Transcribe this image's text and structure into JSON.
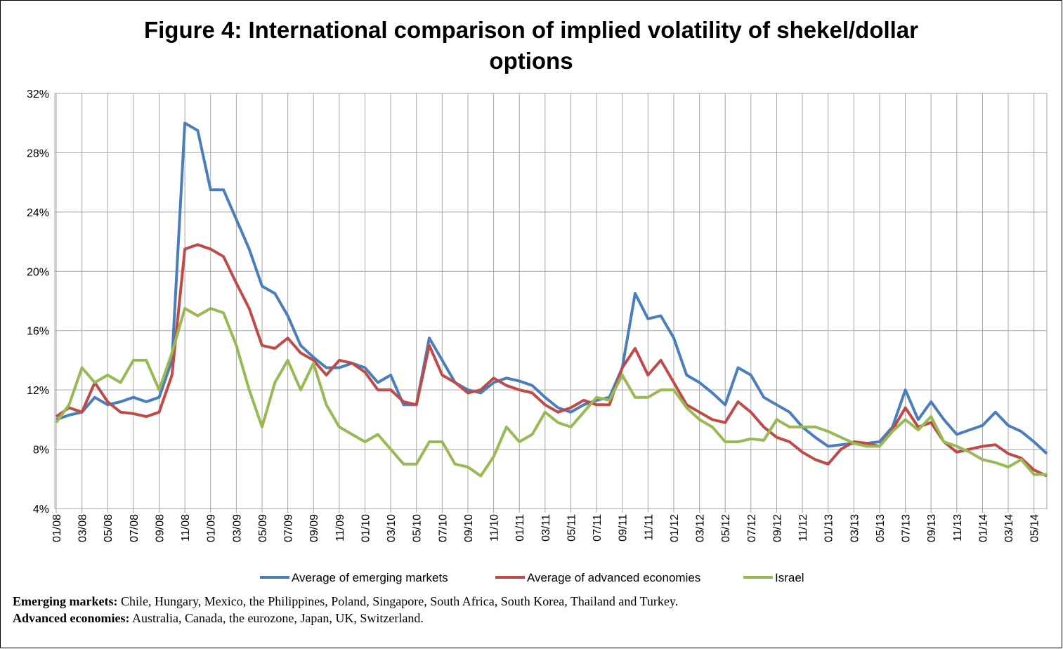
{
  "chart_data": {
    "type": "line",
    "title": "Figure 4: International comparison of implied volatility of shekel/dollar options",
    "categories": [
      "01/08",
      null,
      "03/08",
      null,
      "05/08",
      null,
      "07/08",
      null,
      "09/08",
      null,
      "11/08",
      null,
      "01/09",
      null,
      "03/09",
      null,
      "05/09",
      null,
      "07/09",
      null,
      "09/09",
      null,
      "11/09",
      null,
      "01/10",
      null,
      "03/10",
      null,
      "05/10",
      null,
      "07/10",
      null,
      "09/10",
      null,
      "11/10",
      null,
      "01/11",
      null,
      "03/11",
      null,
      "05/11",
      null,
      "07/11",
      null,
      "09/11",
      null,
      "11/11",
      null,
      "01/12",
      null,
      "03/12",
      null,
      "05/12",
      null,
      "07/12",
      null,
      "09/12",
      null,
      "11/12",
      null,
      "01/13",
      null,
      "03/13",
      null,
      "05/13",
      null,
      "07/13",
      null,
      "09/13",
      null,
      "11/13",
      null,
      "01/14",
      null,
      "03/14",
      null,
      "05/14",
      null
    ],
    "series": [
      {
        "name": "Average of emerging markets",
        "color": "#4a7ebb",
        "values": [
          10,
          10.3,
          10.5,
          11.5,
          11,
          11.2,
          11.5,
          11.2,
          11.5,
          14,
          30,
          29.5,
          25.5,
          25.5,
          23.5,
          21.5,
          19,
          18.5,
          17,
          15,
          14.2,
          13.5,
          13.5,
          13.8,
          13.5,
          12.5,
          13,
          11,
          11,
          15.5,
          14,
          12.5,
          12,
          11.8,
          12.5,
          12.8,
          12.6,
          12.3,
          11.5,
          10.8,
          10.5,
          11,
          11.3,
          11.5,
          13.5,
          18.5,
          16.8,
          17,
          15.5,
          13,
          12.5,
          11.8,
          11,
          13.5,
          13,
          11.5,
          11,
          10.5,
          9.5,
          8.8,
          8.2,
          8.3,
          8.4,
          8.4,
          8.5,
          9.5,
          12,
          10,
          11.2,
          10,
          9,
          9.3,
          9.6,
          10.5,
          9.6,
          9.2,
          8.5,
          7.7
        ]
      },
      {
        "name": "Average of advanced economies",
        "color": "#be4b48",
        "values": [
          10.2,
          10.8,
          10.5,
          12.5,
          11.2,
          10.5,
          10.4,
          10.2,
          10.5,
          13,
          21.5,
          21.8,
          21.5,
          21,
          19.2,
          17.5,
          15,
          14.8,
          15.5,
          14.5,
          14,
          13,
          14,
          13.8,
          13.2,
          12,
          12,
          11.2,
          11,
          15,
          13,
          12.5,
          11.8,
          12,
          12.8,
          12.3,
          12,
          11.8,
          11,
          10.5,
          10.8,
          11.3,
          11,
          11,
          13.5,
          14.8,
          13,
          14,
          12.5,
          11,
          10.5,
          10,
          9.8,
          11.2,
          10.5,
          9.5,
          8.8,
          8.5,
          7.8,
          7.3,
          7,
          8,
          8.5,
          8.4,
          8.2,
          9.3,
          10.8,
          9.5,
          9.8,
          8.5,
          7.8,
          8,
          8.2,
          8.3,
          7.7,
          7.4,
          6.6,
          6.2
        ]
      },
      {
        "name": "Israel",
        "color": "#98b954",
        "values": [
          9.8,
          11,
          13.5,
          12.5,
          13,
          12.5,
          14,
          14,
          12,
          14.5,
          17.5,
          17,
          17.5,
          17.2,
          15,
          12,
          9.5,
          12.5,
          14,
          12,
          13.8,
          11,
          9.5,
          9,
          8.5,
          9,
          8,
          7,
          7,
          8.5,
          8.5,
          7,
          6.8,
          6.2,
          7.5,
          9.5,
          8.5,
          9,
          10.5,
          9.8,
          9.5,
          10.5,
          11.5,
          11.3,
          13,
          11.5,
          11.5,
          12,
          12,
          10.8,
          10,
          9.5,
          8.5,
          8.5,
          8.7,
          8.6,
          10,
          9.5,
          9.5,
          9.5,
          9.2,
          8.8,
          8.4,
          8.2,
          8.2,
          9.2,
          10,
          9.3,
          10.2,
          8.5,
          8.2,
          7.8,
          7.3,
          7.1,
          6.8,
          7.3,
          6.3,
          6.3
        ]
      }
    ],
    "ylim": [
      4,
      32
    ],
    "yticks": [
      {
        "value": 4,
        "label": "4%"
      },
      {
        "value": 8,
        "label": "8%"
      },
      {
        "value": 12,
        "label": "12%"
      },
      {
        "value": 16,
        "label": "16%"
      },
      {
        "value": 20,
        "label": "20%"
      },
      {
        "value": 24,
        "label": "24%"
      },
      {
        "value": 28,
        "label": "28%"
      },
      {
        "value": 32,
        "label": "32%"
      }
    ],
    "grid": true,
    "legend": "bottom",
    "notes": [
      {
        "label": "Emerging markets:",
        "text": "Chile, Hungary, Mexico, the Philippines, Poland, Singapore, South Africa, South Korea, Thailand and Turkey."
      },
      {
        "label": "Advanced economies:",
        "text": "Australia, Canada, the eurozone, Japan, UK, Switzerland."
      }
    ]
  }
}
